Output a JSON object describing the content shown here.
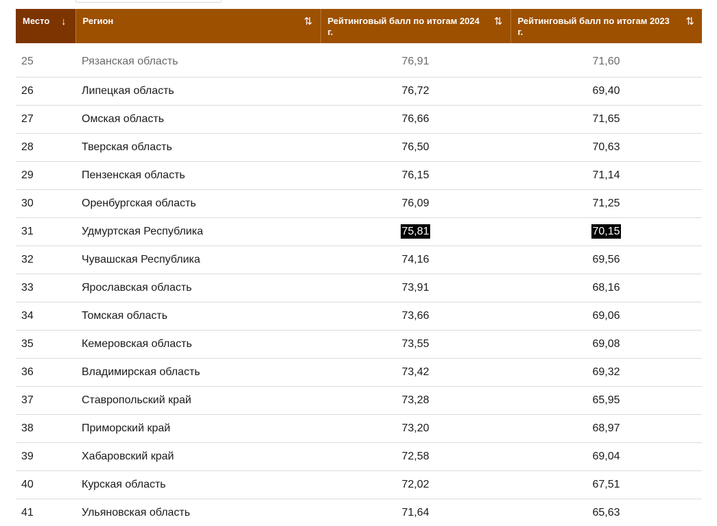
{
  "header": {
    "place": "Место",
    "region": "Регион",
    "score_2024": "Рейтинговый балл по итогам 2024 г.",
    "score_2023": "Рейтинговый балл по итогам 2023 г.",
    "sort_active_icon": "↓",
    "sort_icon": "⇅"
  },
  "colors": {
    "header_bg": "#9d5000",
    "header_active_bg": "#7c3400",
    "highlight": "#000000"
  },
  "rows": [
    {
      "place": "25",
      "region": "Рязанская область",
      "score_2024": "76,91",
      "score_2023": "71,60"
    },
    {
      "place": "26",
      "region": "Липецкая область",
      "score_2024": "76,72",
      "score_2023": "69,40"
    },
    {
      "place": "27",
      "region": "Омская область",
      "score_2024": "76,66",
      "score_2023": "71,65"
    },
    {
      "place": "28",
      "region": "Тверская область",
      "score_2024": "76,50",
      "score_2023": "70,63"
    },
    {
      "place": "29",
      "region": "Пензенская область",
      "score_2024": "76,15",
      "score_2023": "71,14"
    },
    {
      "place": "30",
      "region": "Оренбургская область",
      "score_2024": "76,09",
      "score_2023": "71,25"
    },
    {
      "place": "31",
      "region": "Удмуртская Республика",
      "score_2024": "75,81",
      "score_2023": "70,15"
    },
    {
      "place": "32",
      "region": "Чувашская Республика",
      "score_2024": "74,16",
      "score_2023": "69,56"
    },
    {
      "place": "33",
      "region": "Ярославская область",
      "score_2024": "73,91",
      "score_2023": "68,16"
    },
    {
      "place": "34",
      "region": "Томская область",
      "score_2024": "73,66",
      "score_2023": "69,06"
    },
    {
      "place": "35",
      "region": "Кемеровская область",
      "score_2024": "73,55",
      "score_2023": "69,08"
    },
    {
      "place": "36",
      "region": "Владимирская область",
      "score_2024": "73,42",
      "score_2023": "69,32"
    },
    {
      "place": "37",
      "region": "Ставропольский край",
      "score_2024": "73,28",
      "score_2023": "65,95"
    },
    {
      "place": "38",
      "region": "Приморский край",
      "score_2024": "73,20",
      "score_2023": "68,97"
    },
    {
      "place": "39",
      "region": "Хабаровский край",
      "score_2024": "72,58",
      "score_2023": "69,04"
    },
    {
      "place": "40",
      "region": "Курская область",
      "score_2024": "72,02",
      "score_2023": "67,51"
    },
    {
      "place": "41",
      "region": "Ульяновская область",
      "score_2024": "71,64",
      "score_2023": "65,63"
    }
  ]
}
